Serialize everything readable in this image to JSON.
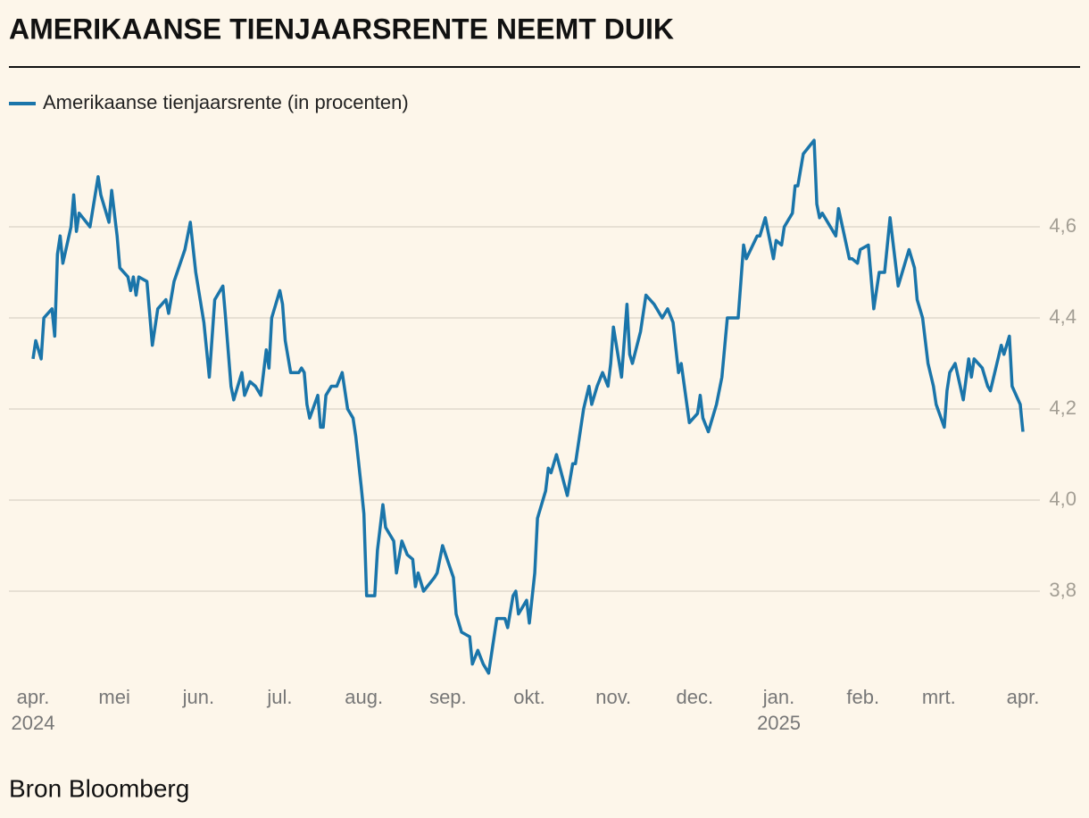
{
  "chart_data": {
    "type": "line",
    "title": "AMERIKAANSE TIENJAARSRENTE NEEMT DUIK",
    "source": "Bron Bloomberg",
    "x": [
      0,
      1,
      3,
      4,
      7,
      8,
      9,
      10,
      11,
      14,
      15,
      16,
      17,
      21,
      24,
      25,
      28,
      29,
      31,
      32,
      35,
      36,
      37,
      38,
      39,
      42,
      44,
      46,
      49,
      50,
      52,
      56,
      58,
      60,
      63,
      65,
      67,
      70,
      71,
      73,
      74,
      77,
      78,
      80,
      82,
      84,
      86,
      87,
      88,
      91,
      92,
      93,
      95,
      98,
      99,
      100,
      101,
      102,
      105,
      106,
      107,
      108,
      110,
      112,
      114,
      116,
      118,
      119,
      121,
      122,
      123,
      126,
      127,
      129,
      130,
      133,
      134,
      136,
      138,
      140,
      141,
      142,
      144,
      148,
      149,
      151,
      155,
      156,
      158,
      161,
      162,
      164,
      166,
      168,
      170,
      171,
      174,
      175,
      177,
      178,
      179,
      182,
      183,
      185,
      186,
      189,
      190,
      191,
      193,
      197,
      199,
      200,
      203,
      205,
      206,
      208,
      210,
      212,
      213,
      214,
      217,
      219,
      220,
      221,
      224,
      226,
      229,
      232,
      234,
      236,
      238,
      239,
      242,
      245,
      246,
      247,
      249,
      252,
      254,
      256,
      260,
      262,
      263,
      267,
      268,
      270,
      273,
      274,
      276,
      277,
      280,
      281,
      282,
      284,
      288,
      289,
      290,
      291,
      296,
      297,
      301,
      302,
      304,
      305,
      308,
      310,
      312,
      314,
      316,
      319,
      323,
      325,
      326,
      328,
      330,
      332,
      333,
      336,
      337,
      338,
      340,
      343,
      345,
      346,
      347,
      350,
      352,
      353,
      357,
      358,
      360,
      361,
      364,
      365
    ],
    "series": [
      {
        "name": "Amerikaanse tienjaarsrente (in procenten)",
        "color": "#1a75aa",
        "values": [
          4.31,
          4.35,
          4.31,
          4.4,
          4.42,
          4.36,
          4.54,
          4.58,
          4.52,
          4.6,
          4.67,
          4.59,
          4.63,
          4.6,
          4.71,
          4.67,
          4.61,
          4.68,
          4.58,
          4.51,
          4.49,
          4.46,
          4.49,
          4.45,
          4.49,
          4.48,
          4.34,
          4.42,
          4.44,
          4.41,
          4.48,
          4.55,
          4.61,
          4.5,
          4.39,
          4.27,
          4.44,
          4.47,
          4.4,
          4.25,
          4.22,
          4.28,
          4.23,
          4.26,
          4.25,
          4.23,
          4.33,
          4.29,
          4.4,
          4.46,
          4.43,
          4.35,
          4.28,
          4.28,
          4.29,
          4.28,
          4.21,
          4.18,
          4.23,
          4.16,
          4.16,
          4.23,
          4.25,
          4.25,
          4.28,
          4.2,
          4.18,
          4.14,
          4.03,
          3.97,
          3.79,
          3.79,
          3.89,
          3.99,
          3.94,
          3.91,
          3.84,
          3.91,
          3.88,
          3.87,
          3.81,
          3.84,
          3.8,
          3.83,
          3.84,
          3.9,
          3.83,
          3.75,
          3.71,
          3.7,
          3.64,
          3.67,
          3.64,
          3.62,
          3.7,
          3.74,
          3.74,
          3.72,
          3.79,
          3.8,
          3.75,
          3.78,
          3.73,
          3.84,
          3.96,
          4.02,
          4.07,
          4.06,
          4.1,
          4.01,
          4.08,
          4.08,
          4.2,
          4.25,
          4.21,
          4.25,
          4.28,
          4.25,
          4.3,
          4.38,
          4.27,
          4.43,
          4.32,
          4.3,
          4.37,
          4.45,
          4.43,
          4.4,
          4.42,
          4.39,
          4.28,
          4.3,
          4.17,
          4.19,
          4.23,
          4.18,
          4.15,
          4.21,
          4.27,
          4.4,
          4.4,
          4.56,
          4.53,
          4.58,
          4.58,
          4.62,
          4.53,
          4.57,
          4.56,
          4.6,
          4.63,
          4.69,
          4.69,
          4.76,
          4.79,
          4.65,
          4.62,
          4.63,
          4.58,
          4.64,
          4.53,
          4.53,
          4.52,
          4.55,
          4.56,
          4.42,
          4.5,
          4.5,
          4.62,
          4.47,
          4.55,
          4.51,
          4.44,
          4.4,
          4.3,
          4.25,
          4.21,
          4.16,
          4.24,
          4.28,
          4.3,
          4.22,
          4.31,
          4.27,
          4.31,
          4.29,
          4.25,
          4.24,
          4.34,
          4.32,
          4.36,
          4.25,
          4.21,
          4.15
        ]
      }
    ],
    "xlim": [
      0,
      365
    ],
    "xticks": [
      {
        "value": 0,
        "label": "apr."
      },
      {
        "value": 30,
        "label": "mei"
      },
      {
        "value": 61,
        "label": "jun."
      },
      {
        "value": 91,
        "label": "jul."
      },
      {
        "value": 122,
        "label": "aug."
      },
      {
        "value": 153,
        "label": "sep."
      },
      {
        "value": 183,
        "label": "okt."
      },
      {
        "value": 214,
        "label": "nov."
      },
      {
        "value": 244,
        "label": "dec."
      },
      {
        "value": 275,
        "label": "jan."
      },
      {
        "value": 306,
        "label": "feb."
      },
      {
        "value": 334,
        "label": "mrt."
      },
      {
        "value": 365,
        "label": "apr."
      }
    ],
    "year_labels": [
      {
        "value": 0,
        "label": "2024"
      },
      {
        "value": 275,
        "label": "2025"
      }
    ],
    "ylim": [
      3.6,
      4.8
    ],
    "yticks": [
      {
        "value": 3.8,
        "label": "3,8"
      },
      {
        "value": 4.0,
        "label": "4,0"
      },
      {
        "value": 4.2,
        "label": "4,2"
      },
      {
        "value": 4.4,
        "label": "4,4"
      },
      {
        "value": 4.6,
        "label": "4,6"
      }
    ],
    "grid": true
  }
}
